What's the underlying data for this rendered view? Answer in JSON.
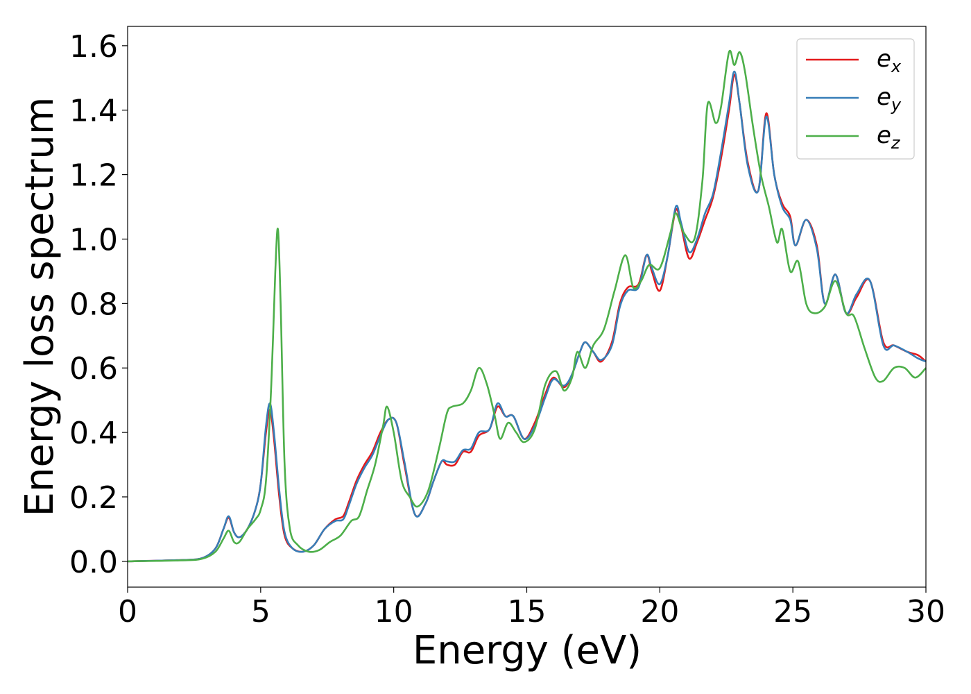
{
  "chart_data": {
    "type": "line",
    "title": "",
    "xlabel": "Energy (eV)",
    "ylabel": "Energy loss spectrum",
    "xlim": [
      0,
      30
    ],
    "ylim": [
      -0.08,
      1.66
    ],
    "xticks": [
      0,
      5,
      10,
      15,
      20,
      25,
      30
    ],
    "yticks": [
      0.0,
      0.2,
      0.4,
      0.6,
      0.8,
      1.0,
      1.2,
      1.4,
      1.6
    ],
    "xtick_labels": [
      "0",
      "5",
      "10",
      "15",
      "20",
      "25",
      "30"
    ],
    "ytick_labels": [
      "0.0",
      "0.2",
      "0.4",
      "0.6",
      "0.8",
      "1.0",
      "1.2",
      "1.4",
      "1.6"
    ],
    "grid": false,
    "legend_position": "top-right",
    "series": [
      {
        "name": "e_x",
        "legend_base": "e",
        "legend_sub": "x",
        "color": "#e41a1c",
        "points": [
          [
            0,
            0
          ],
          [
            2,
            0.004
          ],
          [
            2.8,
            0.01
          ],
          [
            3.3,
            0.04
          ],
          [
            3.6,
            0.1
          ],
          [
            3.8,
            0.135
          ],
          [
            4.0,
            0.09
          ],
          [
            4.2,
            0.075
          ],
          [
            4.5,
            0.1
          ],
          [
            4.8,
            0.16
          ],
          [
            5.0,
            0.24
          ],
          [
            5.2,
            0.4
          ],
          [
            5.35,
            0.47
          ],
          [
            5.5,
            0.38
          ],
          [
            5.7,
            0.2
          ],
          [
            5.9,
            0.08
          ],
          [
            6.2,
            0.04
          ],
          [
            6.6,
            0.03
          ],
          [
            7.0,
            0.05
          ],
          [
            7.4,
            0.1
          ],
          [
            7.8,
            0.13
          ],
          [
            8.1,
            0.14
          ],
          [
            8.3,
            0.18
          ],
          [
            8.6,
            0.25
          ],
          [
            8.9,
            0.3
          ],
          [
            9.2,
            0.34
          ],
          [
            9.5,
            0.4
          ],
          [
            9.8,
            0.44
          ],
          [
            10.1,
            0.43
          ],
          [
            10.4,
            0.3
          ],
          [
            10.8,
            0.145
          ],
          [
            11.2,
            0.18
          ],
          [
            11.5,
            0.25
          ],
          [
            11.8,
            0.31
          ],
          [
            12.0,
            0.3
          ],
          [
            12.3,
            0.3
          ],
          [
            12.6,
            0.34
          ],
          [
            12.9,
            0.34
          ],
          [
            13.2,
            0.39
          ],
          [
            13.6,
            0.41
          ],
          [
            13.9,
            0.48
          ],
          [
            14.2,
            0.45
          ],
          [
            14.5,
            0.45
          ],
          [
            14.9,
            0.38
          ],
          [
            15.3,
            0.43
          ],
          [
            15.7,
            0.52
          ],
          [
            16.0,
            0.57
          ],
          [
            16.4,
            0.54
          ],
          [
            16.7,
            0.58
          ],
          [
            17.0,
            0.65
          ],
          [
            17.2,
            0.68
          ],
          [
            17.5,
            0.65
          ],
          [
            17.8,
            0.62
          ],
          [
            18.2,
            0.68
          ],
          [
            18.5,
            0.8
          ],
          [
            18.8,
            0.85
          ],
          [
            19.2,
            0.86
          ],
          [
            19.5,
            0.95
          ],
          [
            19.7,
            0.9
          ],
          [
            20.0,
            0.84
          ],
          [
            20.3,
            0.95
          ],
          [
            20.6,
            1.09
          ],
          [
            20.8,
            1.04
          ],
          [
            21.1,
            0.94
          ],
          [
            21.4,
            0.99
          ],
          [
            21.7,
            1.06
          ],
          [
            22.0,
            1.13
          ],
          [
            22.3,
            1.25
          ],
          [
            22.6,
            1.4
          ],
          [
            22.8,
            1.51
          ],
          [
            23.0,
            1.42
          ],
          [
            23.3,
            1.24
          ],
          [
            23.7,
            1.15
          ],
          [
            24.0,
            1.39
          ],
          [
            24.3,
            1.2
          ],
          [
            24.6,
            1.11
          ],
          [
            24.9,
            1.07
          ],
          [
            25.1,
            0.98
          ],
          [
            25.5,
            1.06
          ],
          [
            25.9,
            0.98
          ],
          [
            26.2,
            0.8
          ],
          [
            26.6,
            0.89
          ],
          [
            27.0,
            0.77
          ],
          [
            27.4,
            0.82
          ],
          [
            27.9,
            0.87
          ],
          [
            28.4,
            0.68
          ],
          [
            28.8,
            0.67
          ],
          [
            29.3,
            0.65
          ],
          [
            29.7,
            0.64
          ],
          [
            30,
            0.62
          ]
        ]
      },
      {
        "name": "e_y",
        "legend_base": "e",
        "legend_sub": "y",
        "color": "#377eb8",
        "points": [
          [
            0,
            0
          ],
          [
            2,
            0.004
          ],
          [
            2.8,
            0.01
          ],
          [
            3.3,
            0.04
          ],
          [
            3.6,
            0.1
          ],
          [
            3.8,
            0.14
          ],
          [
            4.0,
            0.09
          ],
          [
            4.2,
            0.075
          ],
          [
            4.5,
            0.1
          ],
          [
            4.8,
            0.16
          ],
          [
            5.0,
            0.24
          ],
          [
            5.2,
            0.42
          ],
          [
            5.35,
            0.49
          ],
          [
            5.5,
            0.4
          ],
          [
            5.7,
            0.22
          ],
          [
            5.9,
            0.09
          ],
          [
            6.2,
            0.04
          ],
          [
            6.6,
            0.03
          ],
          [
            7.0,
            0.05
          ],
          [
            7.4,
            0.1
          ],
          [
            7.8,
            0.125
          ],
          [
            8.1,
            0.13
          ],
          [
            8.3,
            0.17
          ],
          [
            8.6,
            0.24
          ],
          [
            8.9,
            0.29
          ],
          [
            9.2,
            0.33
          ],
          [
            9.5,
            0.39
          ],
          [
            9.8,
            0.44
          ],
          [
            10.1,
            0.43
          ],
          [
            10.4,
            0.31
          ],
          [
            10.8,
            0.145
          ],
          [
            11.2,
            0.18
          ],
          [
            11.5,
            0.25
          ],
          [
            11.8,
            0.31
          ],
          [
            12.0,
            0.31
          ],
          [
            12.3,
            0.31
          ],
          [
            12.6,
            0.345
          ],
          [
            12.9,
            0.35
          ],
          [
            13.2,
            0.4
          ],
          [
            13.6,
            0.41
          ],
          [
            13.9,
            0.49
          ],
          [
            14.2,
            0.45
          ],
          [
            14.5,
            0.45
          ],
          [
            14.9,
            0.38
          ],
          [
            15.3,
            0.42
          ],
          [
            15.7,
            0.51
          ],
          [
            16.0,
            0.565
          ],
          [
            16.4,
            0.545
          ],
          [
            16.7,
            0.58
          ],
          [
            17.0,
            0.65
          ],
          [
            17.2,
            0.68
          ],
          [
            17.5,
            0.65
          ],
          [
            17.8,
            0.625
          ],
          [
            18.2,
            0.67
          ],
          [
            18.5,
            0.79
          ],
          [
            18.8,
            0.84
          ],
          [
            19.2,
            0.85
          ],
          [
            19.5,
            0.95
          ],
          [
            19.7,
            0.91
          ],
          [
            20.0,
            0.86
          ],
          [
            20.3,
            0.95
          ],
          [
            20.6,
            1.1
          ],
          [
            20.8,
            1.05
          ],
          [
            21.1,
            0.96
          ],
          [
            21.4,
            1.0
          ],
          [
            21.7,
            1.08
          ],
          [
            22.0,
            1.14
          ],
          [
            22.3,
            1.27
          ],
          [
            22.6,
            1.42
          ],
          [
            22.8,
            1.52
          ],
          [
            23.0,
            1.42
          ],
          [
            23.3,
            1.23
          ],
          [
            23.7,
            1.15
          ],
          [
            24.0,
            1.38
          ],
          [
            24.3,
            1.2
          ],
          [
            24.6,
            1.1
          ],
          [
            24.9,
            1.06
          ],
          [
            25.1,
            0.98
          ],
          [
            25.5,
            1.06
          ],
          [
            25.9,
            0.97
          ],
          [
            26.2,
            0.8
          ],
          [
            26.6,
            0.89
          ],
          [
            27.0,
            0.77
          ],
          [
            27.4,
            0.83
          ],
          [
            27.9,
            0.87
          ],
          [
            28.4,
            0.67
          ],
          [
            28.8,
            0.67
          ],
          [
            29.3,
            0.65
          ],
          [
            29.7,
            0.63
          ],
          [
            30,
            0.62
          ]
        ]
      },
      {
        "name": "e_z",
        "legend_base": "e",
        "legend_sub": "z",
        "color": "#4daf4a",
        "points": [
          [
            0,
            0
          ],
          [
            2,
            0.003
          ],
          [
            2.8,
            0.008
          ],
          [
            3.3,
            0.03
          ],
          [
            3.6,
            0.07
          ],
          [
            3.8,
            0.095
          ],
          [
            4.0,
            0.06
          ],
          [
            4.2,
            0.06
          ],
          [
            4.5,
            0.1
          ],
          [
            4.8,
            0.13
          ],
          [
            5.0,
            0.16
          ],
          [
            5.2,
            0.25
          ],
          [
            5.4,
            0.55
          ],
          [
            5.55,
            0.9
          ],
          [
            5.65,
            1.03
          ],
          [
            5.75,
            0.8
          ],
          [
            5.9,
            0.3
          ],
          [
            6.1,
            0.1
          ],
          [
            6.4,
            0.05
          ],
          [
            6.8,
            0.03
          ],
          [
            7.2,
            0.035
          ],
          [
            7.6,
            0.06
          ],
          [
            8.0,
            0.08
          ],
          [
            8.4,
            0.125
          ],
          [
            8.7,
            0.14
          ],
          [
            9.0,
            0.22
          ],
          [
            9.3,
            0.3
          ],
          [
            9.6,
            0.42
          ],
          [
            9.75,
            0.48
          ],
          [
            10.0,
            0.4
          ],
          [
            10.3,
            0.25
          ],
          [
            10.6,
            0.2
          ],
          [
            10.9,
            0.17
          ],
          [
            11.3,
            0.22
          ],
          [
            11.7,
            0.35
          ],
          [
            12.0,
            0.46
          ],
          [
            12.2,
            0.48
          ],
          [
            12.6,
            0.49
          ],
          [
            12.9,
            0.53
          ],
          [
            13.2,
            0.6
          ],
          [
            13.5,
            0.55
          ],
          [
            13.8,
            0.45
          ],
          [
            14.0,
            0.38
          ],
          [
            14.3,
            0.43
          ],
          [
            14.6,
            0.4
          ],
          [
            14.9,
            0.37
          ],
          [
            15.3,
            0.41
          ],
          [
            15.7,
            0.55
          ],
          [
            16.1,
            0.59
          ],
          [
            16.4,
            0.53
          ],
          [
            16.7,
            0.57
          ],
          [
            16.9,
            0.65
          ],
          [
            17.2,
            0.6
          ],
          [
            17.5,
            0.67
          ],
          [
            17.9,
            0.72
          ],
          [
            18.3,
            0.84
          ],
          [
            18.7,
            0.95
          ],
          [
            19.0,
            0.85
          ],
          [
            19.3,
            0.87
          ],
          [
            19.6,
            0.92
          ],
          [
            20.0,
            0.91
          ],
          [
            20.4,
            1.02
          ],
          [
            20.6,
            1.08
          ],
          [
            20.9,
            1.02
          ],
          [
            21.3,
            1.0
          ],
          [
            21.6,
            1.18
          ],
          [
            21.8,
            1.42
          ],
          [
            22.1,
            1.36
          ],
          [
            22.3,
            1.41
          ],
          [
            22.6,
            1.58
          ],
          [
            22.8,
            1.54
          ],
          [
            23.0,
            1.58
          ],
          [
            23.2,
            1.52
          ],
          [
            23.5,
            1.35
          ],
          [
            23.8,
            1.2
          ],
          [
            24.1,
            1.1
          ],
          [
            24.4,
            0.99
          ],
          [
            24.6,
            1.03
          ],
          [
            24.9,
            0.9
          ],
          [
            25.2,
            0.93
          ],
          [
            25.5,
            0.8
          ],
          [
            25.8,
            0.77
          ],
          [
            26.2,
            0.79
          ],
          [
            26.6,
            0.87
          ],
          [
            27.0,
            0.77
          ],
          [
            27.3,
            0.76
          ],
          [
            27.7,
            0.66
          ],
          [
            28.1,
            0.57
          ],
          [
            28.4,
            0.56
          ],
          [
            28.8,
            0.6
          ],
          [
            29.2,
            0.6
          ],
          [
            29.6,
            0.57
          ],
          [
            30,
            0.6
          ]
        ]
      }
    ]
  }
}
